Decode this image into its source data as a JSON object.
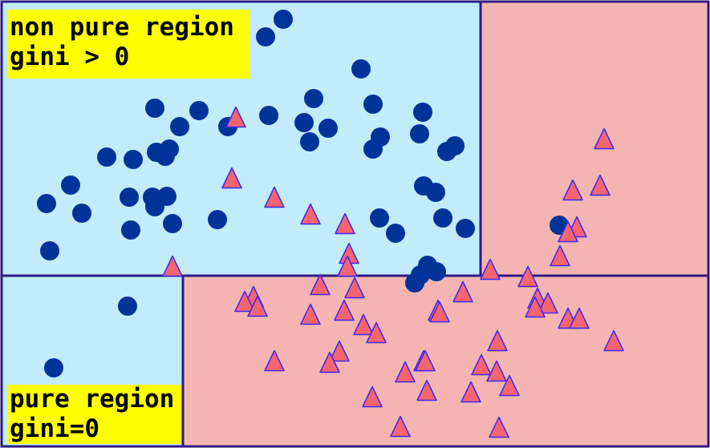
{
  "colors": {
    "blue_region": "#c2ecfb",
    "red_region": "#f4b5b2",
    "border": "#2e1a82",
    "circle": "#003399",
    "triangle_fill": "#f46570",
    "triangle_stroke": "#3f28ee",
    "label_bg": "#ffff00"
  },
  "labels": {
    "top_line1": "non pure region",
    "top_line2": "gini > 0",
    "bottom_line1": "pure region",
    "bottom_line2": "gini=0"
  },
  "marker_shapes": {
    "class_a": "circle",
    "class_b": "triangle"
  }
}
